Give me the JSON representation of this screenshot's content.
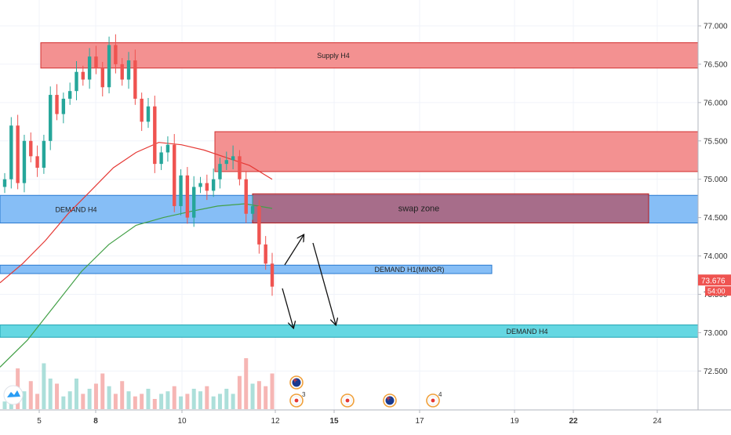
{
  "chart_data": {
    "type": "candlestick",
    "x_ticks": [
      "5",
      "8",
      "10",
      "12",
      "15",
      "17",
      "19",
      "22",
      "24"
    ],
    "y_ticks": [
      "77.000",
      "76.500",
      "76.000",
      "75.500",
      "75.000",
      "74.500",
      "74.000",
      "73.500",
      "73.000",
      "72.500"
    ],
    "ylim": [
      72.15,
      77.2
    ],
    "grid": true,
    "last_price": "73.676",
    "countdown": "54:00",
    "zones": [
      {
        "label": "Supply H4",
        "kind": "supply",
        "low": 76.45,
        "high": 76.78
      },
      {
        "label": "",
        "kind": "supply",
        "low": 75.1,
        "high": 75.62
      },
      {
        "label": "DEMAND H4",
        "kind": "demand",
        "low": 74.43,
        "high": 74.79
      },
      {
        "label": "swap zone",
        "kind": "swap",
        "low": 74.43,
        "high": 74.81
      },
      {
        "label": "DEMAND H1(MINOR)",
        "kind": "demand",
        "low": 73.77,
        "high": 73.88
      },
      {
        "label": "DEMAND H4",
        "kind": "demand-cyan",
        "low": 72.94,
        "high": 73.1
      }
    ],
    "series": [
      {
        "values": [
          75.0,
          75.7,
          74.95,
          75.5,
          75.3,
          75.15,
          75.5,
          76.1,
          75.85,
          76.05,
          76.15,
          76.4,
          76.3,
          76.6,
          76.45,
          76.2,
          76.75,
          76.5,
          76.3,
          76.55,
          76.05,
          75.75,
          75.95,
          75.2,
          75.35,
          75.45,
          74.65,
          75.05,
          74.5,
          74.9,
          74.95,
          74.85,
          75.0,
          75.2,
          75.25,
          75.3,
          75.0,
          74.55,
          74.65,
          74.15,
          73.9,
          73.6
        ]
      }
    ],
    "ma_red": [
      73.65,
      73.9,
      74.2,
      74.55,
      74.85,
      75.15,
      75.35,
      75.48,
      75.45,
      75.38,
      75.28,
      75.18,
      75.0
    ],
    "ma_green": [
      72.55,
      72.9,
      73.35,
      73.8,
      74.15,
      74.4,
      74.5,
      74.58,
      74.65,
      74.68,
      74.62
    ],
    "volumes": [
      0.15,
      0.45,
      0.8,
      0.35,
      0.55,
      0.3,
      0.9,
      0.6,
      0.5,
      0.25,
      0.35,
      0.6,
      0.3,
      0.4,
      0.5,
      0.7,
      0.45,
      0.3,
      0.55,
      0.35,
      0.25,
      0.3,
      0.4,
      0.2,
      0.3,
      0.35,
      0.45,
      0.25,
      0.3,
      0.4,
      0.35,
      0.45,
      0.25,
      0.3,
      0.4,
      0.3,
      0.65,
      1.0,
      0.5,
      0.55,
      0.45,
      0.7
    ],
    "events": [
      {
        "icon": "australia-flag-icon",
        "count": ""
      },
      {
        "icon": "japan-flag-icon",
        "count": "3"
      },
      {
        "icon": "japan-flag-icon",
        "count": ""
      },
      {
        "icon": "australia-flag-icon",
        "count": ""
      },
      {
        "icon": "japan-flag-icon",
        "count": "4"
      }
    ]
  }
}
